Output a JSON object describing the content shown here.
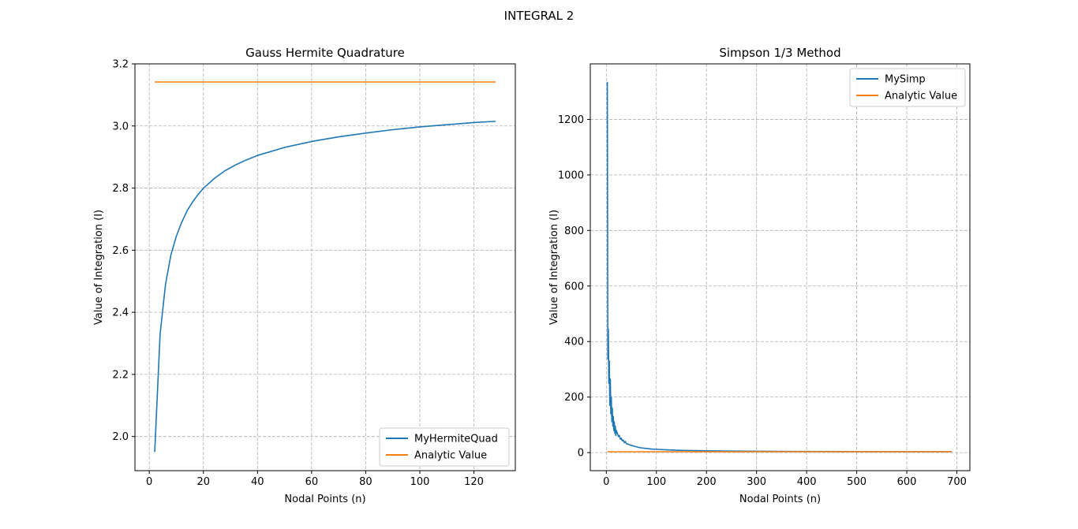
{
  "figure": {
    "suptitle": "INTEGRAL 2"
  },
  "colors": {
    "blue": "#1f77b4",
    "orange": "#ff7f0e",
    "grid": "#b0b0b0"
  },
  "chart_data": [
    {
      "type": "line",
      "title": "Gauss Hermite Quadrature",
      "xlabel": "Nodal Points (n)",
      "ylabel": "Value of Integration (I)",
      "xlim": [
        -5.3,
        135.3
      ],
      "ylim": [
        1.89,
        3.2
      ],
      "xticks": [
        0,
        20,
        40,
        60,
        80,
        100,
        120
      ],
      "yticks": [
        2.0,
        2.2,
        2.4,
        2.6,
        2.8,
        3.0,
        3.2
      ],
      "ytick_decimals": 1,
      "grid": true,
      "legend": "lower right",
      "series": [
        {
          "name": "MyHermiteQuad",
          "color": "#1f77b4",
          "x": [
            2,
            4,
            6,
            8,
            10,
            12,
            14,
            16,
            18,
            20,
            24,
            28,
            32,
            36,
            40,
            50,
            60,
            70,
            80,
            90,
            100,
            110,
            120,
            128
          ],
          "y": [
            1.95,
            2.33,
            2.49,
            2.585,
            2.645,
            2.69,
            2.727,
            2.755,
            2.779,
            2.799,
            2.831,
            2.856,
            2.875,
            2.891,
            2.905,
            2.931,
            2.95,
            2.965,
            2.977,
            2.988,
            2.997,
            3.004,
            3.011,
            3.015
          ]
        },
        {
          "name": "Analytic Value",
          "color": "#ff7f0e",
          "x": [
            2,
            128
          ],
          "y": [
            3.1416,
            3.1416
          ]
        }
      ]
    },
    {
      "type": "line",
      "title": "Simpson 1/3 Method",
      "xlabel": "Nodal Points (n)",
      "ylabel": "Value of Integration (I)",
      "xlim": [
        -32,
        726
      ],
      "ylim": [
        -65,
        1400
      ],
      "xticks": [
        0,
        100,
        200,
        300,
        400,
        500,
        600,
        700
      ],
      "yticks": [
        0,
        200,
        400,
        600,
        800,
        1000,
        1200
      ],
      "ytick_decimals": 0,
      "grid": true,
      "legend": "upper right",
      "series": [
        {
          "name": "MySimp",
          "color": "#1f77b4",
          "x": [
            2,
            3,
            4,
            5,
            6,
            7,
            8,
            9,
            10,
            11,
            12,
            13,
            14,
            15,
            16,
            17,
            18,
            19,
            20,
            22,
            24,
            26,
            28,
            30,
            32,
            34,
            36,
            38,
            40,
            44,
            48,
            52,
            56,
            60,
            64,
            70,
            80,
            90,
            100,
            120,
            150,
            200,
            250,
            300,
            400,
            500,
            600,
            690
          ],
          "y": [
            1335,
            337,
            445,
            250,
            330,
            170,
            265,
            140,
            200,
            112,
            160,
            95,
            130,
            80,
            110,
            70,
            95,
            62,
            80,
            70,
            58,
            62,
            48,
            52,
            42,
            45,
            36,
            40,
            32,
            30,
            27,
            25,
            23,
            21,
            19,
            17,
            15,
            13,
            12,
            10,
            8,
            6.5,
            5.5,
            4.8,
            4,
            3.6,
            3.3,
            3.2
          ]
        },
        {
          "name": "Analytic Value",
          "color": "#ff7f0e",
          "x": [
            2,
            690
          ],
          "y": [
            3.14,
            3.14
          ]
        }
      ]
    }
  ]
}
